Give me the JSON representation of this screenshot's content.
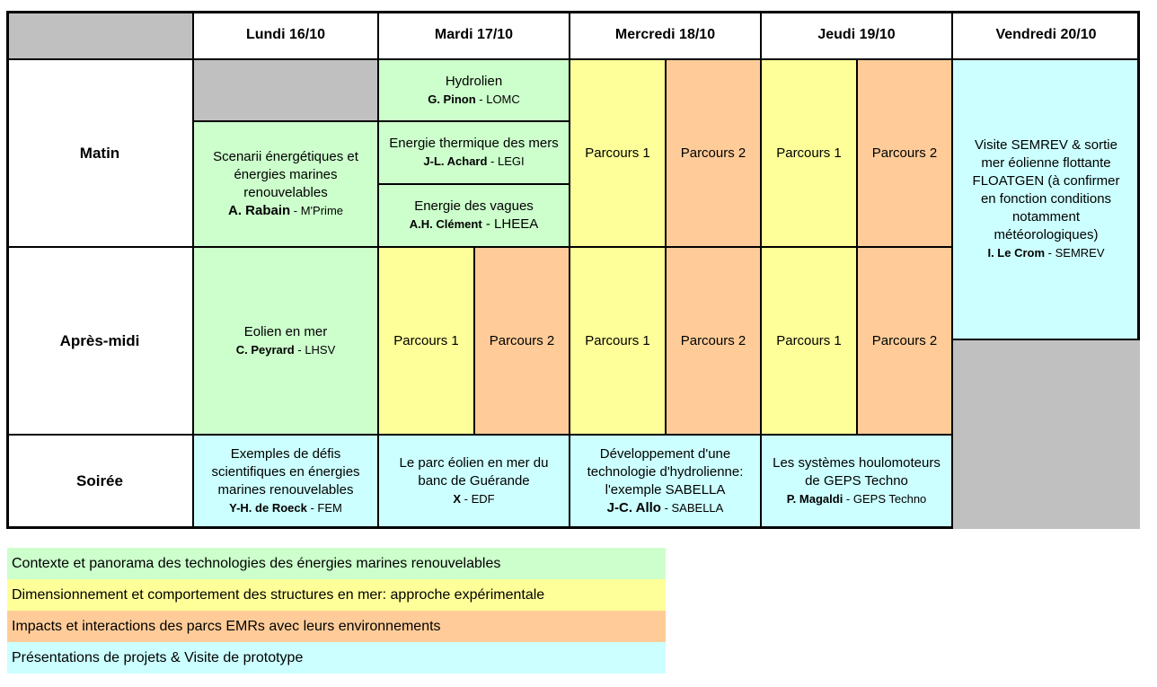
{
  "headers": {
    "lundi": "Lundi 16/10",
    "mardi": "Mardi 17/10",
    "mercredi": "Mercredi 18/10",
    "jeudi": "Jeudi 19/10",
    "vendredi": "Vendredi 20/10"
  },
  "rows": {
    "matin": "Matin",
    "apres_midi": "Après-midi",
    "soiree": "Soirée"
  },
  "sessions": {
    "lundi_matin": {
      "title": "Scenarii énergétiques et énergies marines renouvelables",
      "name": "A. Rabain",
      "affil": " - M'Prime"
    },
    "mardi_hydrolien": {
      "title": "Hydrolien",
      "name": "G. Pinon",
      "affil": " - LOMC"
    },
    "mardi_thermique": {
      "title": "Energie thermique des mers",
      "name": "J-L. Achard",
      "affil": " - LEGI"
    },
    "mardi_vagues": {
      "title": "Energie des vagues",
      "name": "A.H. Clément",
      "affil": " - LHEEA"
    },
    "lundi_apres_midi": {
      "title": "Eolien en mer",
      "name": "C. Peyrard",
      "affil": " - LHSV"
    },
    "vendredi_visite": {
      "title": "Visite SEMREV & sortie mer éolienne flottante FLOATGEN (à confirmer en fonction conditions notamment météorologiques)",
      "name": "I. Le Crom",
      "affil": " - SEMREV"
    },
    "lundi_soiree": {
      "title": "Exemples de défis scientifiques en énergies marines renouvelables",
      "name": "Y-H. de Roeck",
      "affil": " - FEM"
    },
    "mardi_soiree": {
      "title": "Le parc éolien en mer du banc de Guérande",
      "name": "X",
      "affil": " - EDF"
    },
    "mercredi_soiree": {
      "title": "Développement d'une technologie d'hydrolienne: l'exemple SABELLA",
      "name": "J-C. Allo",
      "affil": " - SABELLA"
    },
    "jeudi_soiree": {
      "title": "Les systèmes houlomoteurs de GEPS Techno",
      "name": "P. Magaldi",
      "affil": " - GEPS Techno"
    }
  },
  "parcours": {
    "p1": "Parcours 1",
    "p2": "Parcours 2"
  },
  "colors": {
    "green": "#ccffcc",
    "yellow": "#ffff99",
    "orange": "#ffcc99",
    "cyan": "#ccffff",
    "gray": "#c0c0c0"
  },
  "legend": [
    {
      "label": "Contexte et panorama des technologies des énergies marines renouvelables",
      "color": "#ccffcc"
    },
    {
      "label": "Dimensionnement et comportement des structures en mer: approche expérimentale",
      "color": "#ffff99"
    },
    {
      "label": "Impacts et interactions des parcs EMRs avec leurs environnements",
      "color": "#ffcc99"
    },
    {
      "label": "Présentations de projets & Visite de prototype",
      "color": "#ccffff"
    }
  ]
}
